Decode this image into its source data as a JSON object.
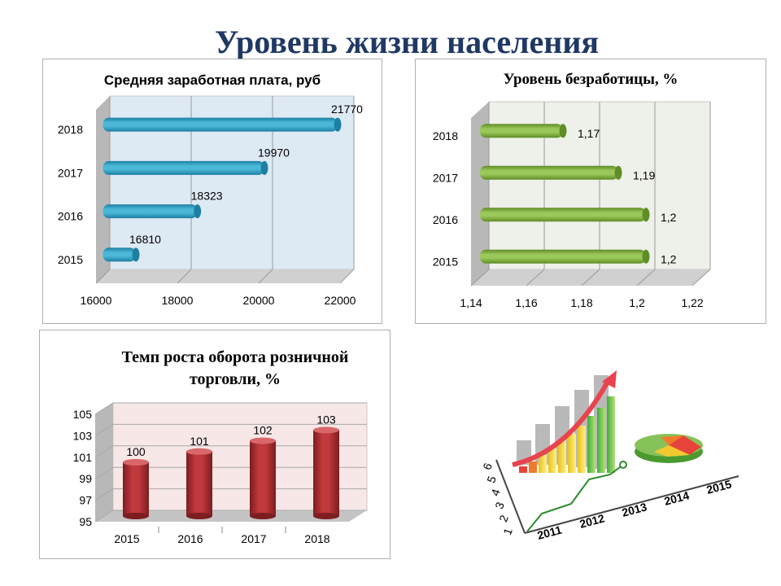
{
  "page_title": "Уровень жизни населения",
  "chart_data": [
    {
      "type": "bar",
      "orientation": "horizontal",
      "title": "Средняя заработная плата, руб",
      "categories": [
        "2015",
        "2016",
        "2017",
        "2018"
      ],
      "values": [
        16810,
        18323,
        19970,
        21770
      ],
      "value_labels": [
        "16810",
        "18323",
        "19970",
        "21770"
      ],
      "xlim": [
        16000,
        22000
      ],
      "x_ticks": [
        "16000",
        "18000",
        "20000",
        "22000"
      ],
      "grid": true,
      "colors": {
        "bar": "#4bb8d8",
        "bar_dark": "#1d7fa3",
        "wall": "#dde9f3"
      }
    },
    {
      "type": "bar",
      "orientation": "horizontal",
      "title": "Уровень безработицы, %",
      "categories": [
        "2015",
        "2016",
        "2017",
        "2018"
      ],
      "values": [
        1.2,
        1.2,
        1.19,
        1.17
      ],
      "value_labels": [
        "1,2",
        "1,2",
        "1,19",
        "1,17"
      ],
      "xlim": [
        1.14,
        1.22
      ],
      "x_ticks": [
        "1,14",
        "1,16",
        "1,18",
        "1,2",
        "1,22"
      ],
      "grid": true,
      "colors": {
        "bar": "#9bc85a",
        "bar_dark": "#5f8d26",
        "wall": "#eef0ea"
      }
    },
    {
      "type": "bar",
      "orientation": "vertical",
      "title": "Темп роста оборота розничной торговли, %",
      "title_lines": [
        "Темп роста оборота розничной",
        "торговли, %"
      ],
      "categories": [
        "2015",
        "2016",
        "2017",
        "2018"
      ],
      "values": [
        100,
        101,
        102,
        103
      ],
      "value_labels": [
        "100",
        "101",
        "102",
        "103"
      ],
      "ylim": [
        95,
        105
      ],
      "y_ticks": [
        "95",
        "97",
        "99",
        "101",
        "103",
        "105"
      ],
      "grid": true,
      "colors": {
        "bar": "#c0393d",
        "bar_dark": "#7d1d20",
        "wall": "#f7e7e7"
      }
    }
  ],
  "decoration": {
    "description_icon": "growth-chart-illustration",
    "axis_years": [
      "2011",
      "2012",
      "2013",
      "2014",
      "2015"
    ],
    "axis_numbers": [
      "1",
      "2",
      "3",
      "4",
      "5",
      "6"
    ]
  }
}
